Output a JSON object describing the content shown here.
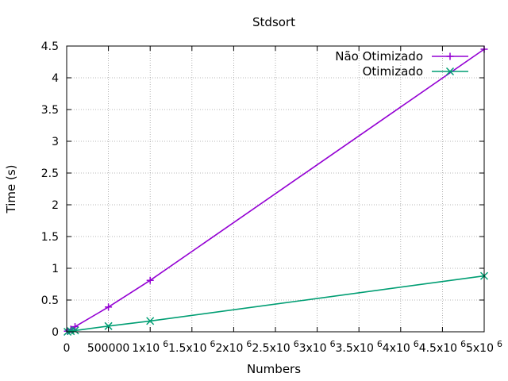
{
  "chart_data": {
    "type": "line",
    "title": "Stdsort",
    "xlabel": "Numbers",
    "ylabel": "Time (s)",
    "xlim": [
      0,
      5000000
    ],
    "ylim": [
      0,
      4.5
    ],
    "grid": true,
    "legend_position": "top-right",
    "x_ticks": [
      {
        "value": 0,
        "label": "0",
        "exp": ""
      },
      {
        "value": 500000,
        "label": "500000",
        "exp": ""
      },
      {
        "value": 1000000,
        "label": "1x10",
        "exp": "6"
      },
      {
        "value": 1500000,
        "label": "1.5x10",
        "exp": "6"
      },
      {
        "value": 2000000,
        "label": "2x10",
        "exp": "6"
      },
      {
        "value": 2500000,
        "label": "2.5x10",
        "exp": "6"
      },
      {
        "value": 3000000,
        "label": "3x10",
        "exp": "6"
      },
      {
        "value": 3500000,
        "label": "3.5x10",
        "exp": "6"
      },
      {
        "value": 4000000,
        "label": "4x10",
        "exp": "6"
      },
      {
        "value": 4500000,
        "label": "4.5x10",
        "exp": "6"
      },
      {
        "value": 5000000,
        "label": "5x10",
        "exp": "6"
      }
    ],
    "y_ticks": [
      {
        "value": 0,
        "label": "0"
      },
      {
        "value": 0.5,
        "label": "0.5"
      },
      {
        "value": 1,
        "label": "1"
      },
      {
        "value": 1.5,
        "label": "1.5"
      },
      {
        "value": 2,
        "label": "2"
      },
      {
        "value": 2.5,
        "label": "2.5"
      },
      {
        "value": 3,
        "label": "3"
      },
      {
        "value": 3.5,
        "label": "3.5"
      },
      {
        "value": 4,
        "label": "4"
      },
      {
        "value": 4.5,
        "label": "4.5"
      }
    ],
    "series": [
      {
        "name": "Não Otimizado",
        "color": "#9400d3",
        "marker": "plus",
        "x": [
          10000,
          50000,
          100000,
          500000,
          1000000,
          5000000
        ],
        "y": [
          0.01,
          0.04,
          0.08,
          0.39,
          0.81,
          4.45
        ]
      },
      {
        "name": "Otimizado",
        "color": "#009e73",
        "marker": "cross",
        "x": [
          10000,
          50000,
          100000,
          500000,
          1000000,
          5000000
        ],
        "y": [
          0.0,
          0.01,
          0.02,
          0.09,
          0.17,
          0.88
        ]
      }
    ]
  }
}
